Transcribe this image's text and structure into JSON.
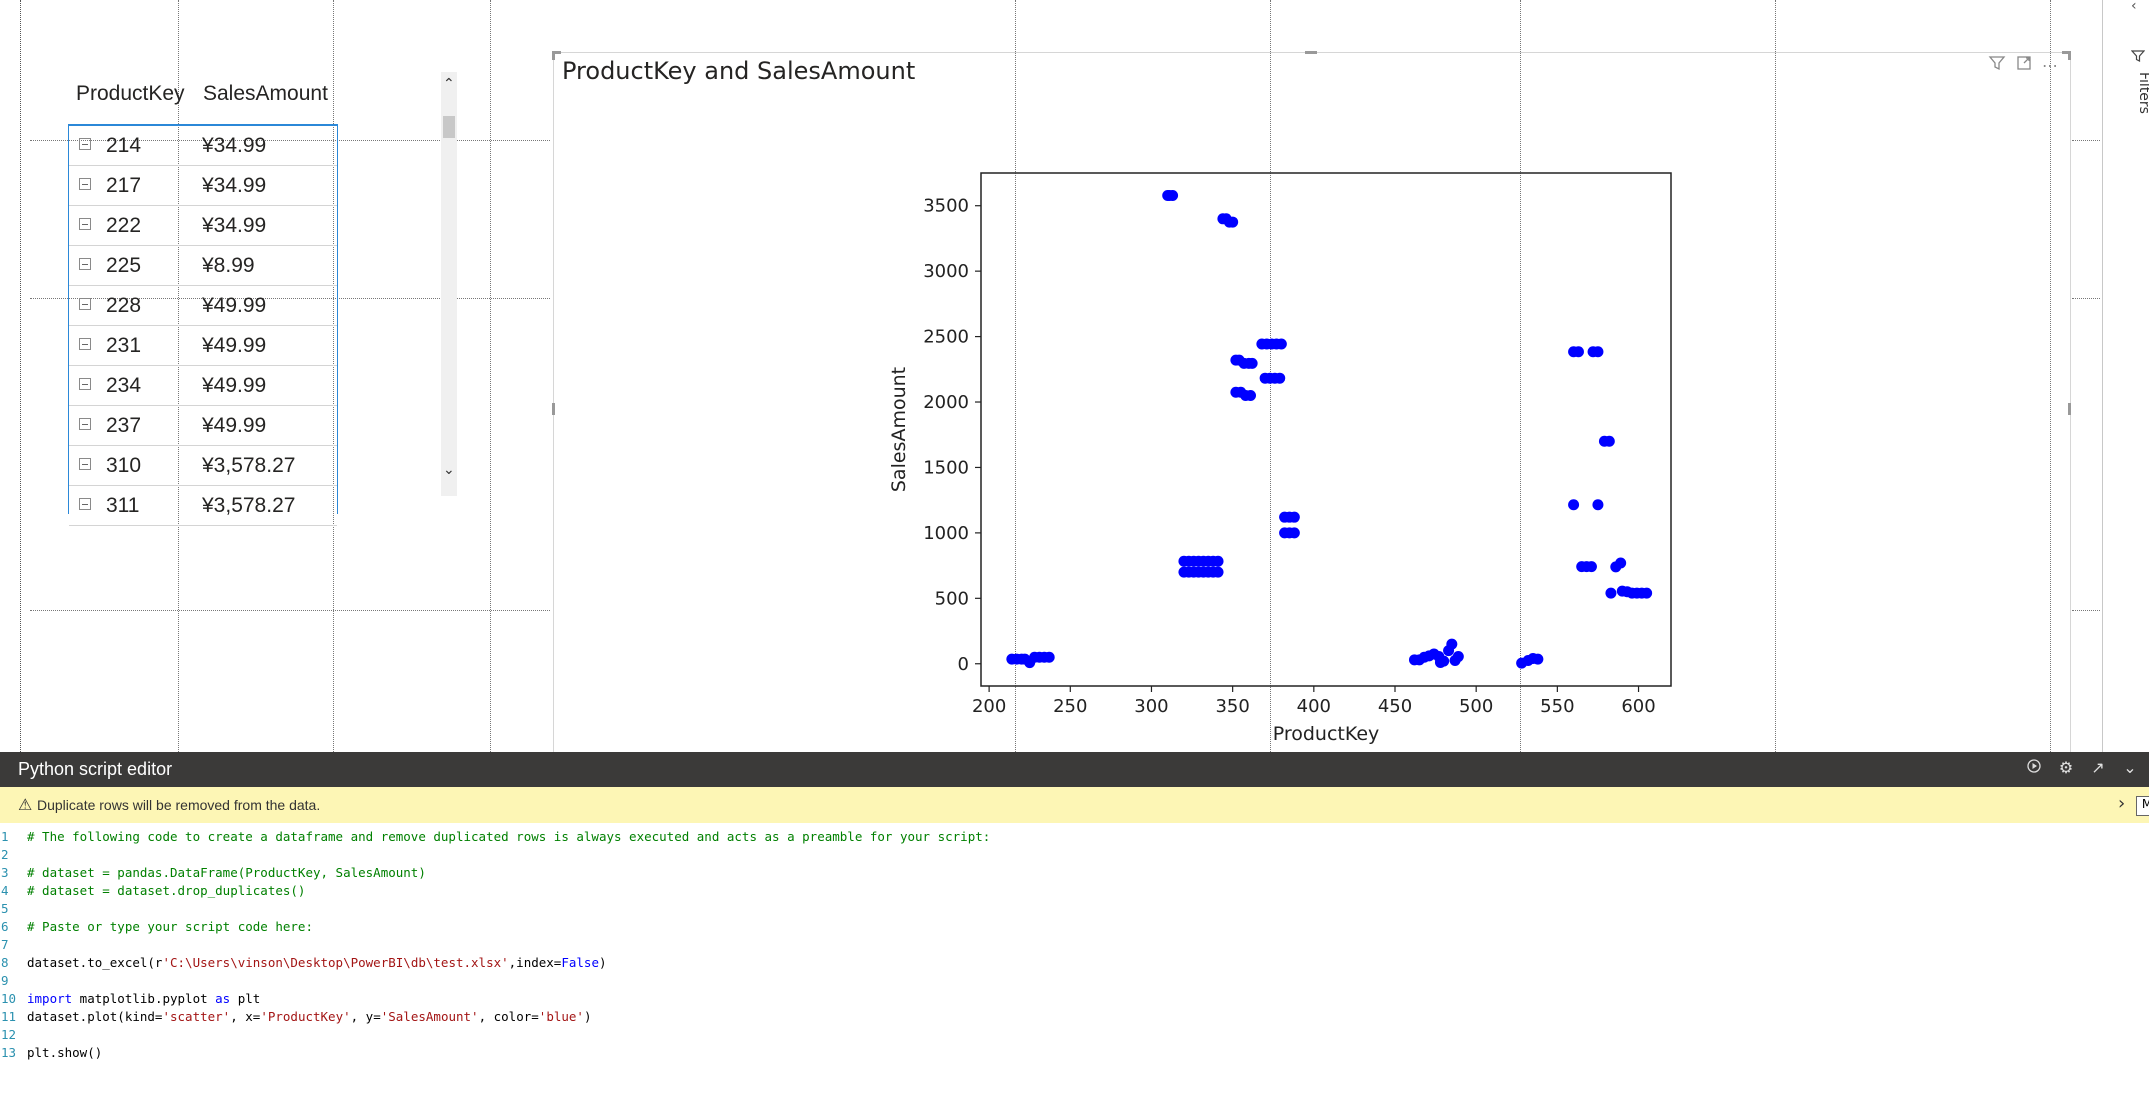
{
  "table": {
    "columns": [
      "ProductKey",
      "SalesAmount"
    ],
    "rows": [
      {
        "key": "214",
        "amount": "¥34.99"
      },
      {
        "key": "217",
        "amount": "¥34.99"
      },
      {
        "key": "222",
        "amount": "¥34.99"
      },
      {
        "key": "225",
        "amount": "¥8.99"
      },
      {
        "key": "228",
        "amount": "¥49.99"
      },
      {
        "key": "231",
        "amount": "¥49.99"
      },
      {
        "key": "234",
        "amount": "¥49.99"
      },
      {
        "key": "237",
        "amount": "¥49.99"
      },
      {
        "key": "310",
        "amount": "¥3,578.27"
      },
      {
        "key": "311",
        "amount": "¥3,578.27"
      }
    ]
  },
  "visual": {
    "title": "ProductKey and SalesAmount",
    "toolbar_icons": [
      "filter-icon",
      "focus-mode-icon",
      "more-options-icon"
    ]
  },
  "chart_data": {
    "type": "scatter",
    "xlabel": "ProductKey",
    "ylabel": "SalesAmount",
    "xlim": [
      195,
      620
    ],
    "ylim": [
      -170,
      3750
    ],
    "xticks": [
      200,
      250,
      300,
      350,
      400,
      450,
      500,
      550,
      600
    ],
    "yticks": [
      0,
      500,
      1000,
      1500,
      2000,
      2500,
      3000,
      3500
    ],
    "color": "#0000ff",
    "grid": false,
    "points": [
      [
        214,
        35
      ],
      [
        217,
        35
      ],
      [
        220,
        35
      ],
      [
        222,
        35
      ],
      [
        225,
        9
      ],
      [
        228,
        50
      ],
      [
        231,
        50
      ],
      [
        234,
        50
      ],
      [
        237,
        50
      ],
      [
        310,
        3578
      ],
      [
        311,
        3578
      ],
      [
        313,
        3578
      ],
      [
        344,
        3400
      ],
      [
        346,
        3400
      ],
      [
        348,
        3375
      ],
      [
        350,
        3375
      ],
      [
        352,
        2320
      ],
      [
        354,
        2320
      ],
      [
        357,
        2295
      ],
      [
        360,
        2295
      ],
      [
        362,
        2295
      ],
      [
        352,
        2075
      ],
      [
        355,
        2075
      ],
      [
        358,
        2050
      ],
      [
        361,
        2050
      ],
      [
        368,
        2443
      ],
      [
        371,
        2443
      ],
      [
        374,
        2443
      ],
      [
        377,
        2443
      ],
      [
        380,
        2443
      ],
      [
        370,
        2182
      ],
      [
        373,
        2182
      ],
      [
        376,
        2182
      ],
      [
        379,
        2182
      ],
      [
        320,
        783
      ],
      [
        323,
        783
      ],
      [
        326,
        783
      ],
      [
        329,
        783
      ],
      [
        332,
        783
      ],
      [
        335,
        783
      ],
      [
        338,
        783
      ],
      [
        341,
        783
      ],
      [
        320,
        700
      ],
      [
        323,
        700
      ],
      [
        326,
        700
      ],
      [
        329,
        700
      ],
      [
        332,
        700
      ],
      [
        335,
        700
      ],
      [
        338,
        700
      ],
      [
        341,
        700
      ],
      [
        382,
        1120
      ],
      [
        385,
        1120
      ],
      [
        388,
        1120
      ],
      [
        382,
        1000
      ],
      [
        385,
        1000
      ],
      [
        388,
        1000
      ],
      [
        462,
        30
      ],
      [
        465,
        30
      ],
      [
        468,
        50
      ],
      [
        471,
        60
      ],
      [
        474,
        75
      ],
      [
        477,
        55
      ],
      [
        478,
        10
      ],
      [
        480,
        20
      ],
      [
        483,
        100
      ],
      [
        485,
        150
      ],
      [
        487,
        25
      ],
      [
        489,
        55
      ],
      [
        528,
        5
      ],
      [
        532,
        25
      ],
      [
        535,
        40
      ],
      [
        538,
        35
      ],
      [
        560,
        2384
      ],
      [
        563,
        2384
      ],
      [
        572,
        2384
      ],
      [
        575,
        2384
      ],
      [
        579,
        1700
      ],
      [
        582,
        1700
      ],
      [
        560,
        1215
      ],
      [
        575,
        1215
      ],
      [
        565,
        742
      ],
      [
        568,
        742
      ],
      [
        571,
        742
      ],
      [
        583,
        540
      ],
      [
        586,
        740
      ],
      [
        589,
        770
      ],
      [
        590,
        555
      ],
      [
        593,
        550
      ],
      [
        596,
        540
      ],
      [
        599,
        540
      ],
      [
        602,
        540
      ],
      [
        605,
        540
      ]
    ]
  },
  "editor": {
    "title": "Python script editor",
    "warning": "Duplicate rows will be removed from the data.",
    "tooltip": "M",
    "action_icons": [
      "run-icon",
      "settings-icon",
      "expand-icon",
      "collapse-icon"
    ],
    "code_lines": [
      "# The following code to create a dataframe and remove duplicated rows is always executed and acts as a preamble for your script:",
      "",
      "# dataset = pandas.DataFrame(ProductKey, SalesAmount)",
      "# dataset = dataset.drop_duplicates()",
      "",
      "# Paste or type your script code here:",
      "",
      "dataset.to_excel(r'C:\\Users\\vinson\\Desktop\\PowerBI\\db\\test.xlsx',index=False)",
      "",
      "import matplotlib.pyplot as plt",
      "dataset.plot(kind='scatter', x='ProductKey', y='SalesAmount', color='blue')",
      "",
      "plt.show()"
    ]
  },
  "filters_pane": {
    "label": "Filters"
  }
}
